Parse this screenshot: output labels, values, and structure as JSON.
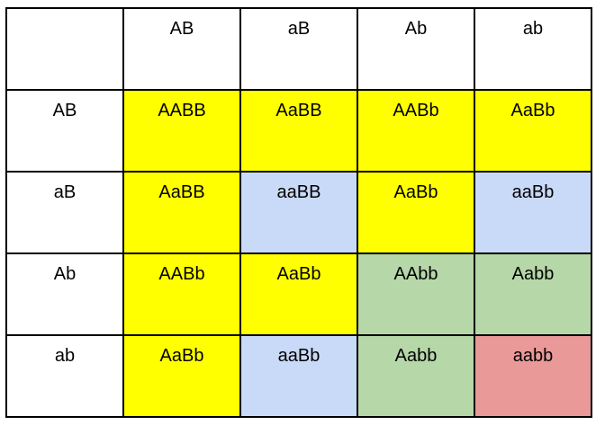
{
  "colors": {
    "dominant_both": "#ffff00",
    "recessive_a_dominant_b": "#c9daf8",
    "dominant_a_recessive_b": "#b6d7a8",
    "recessive_both": "#ea9999",
    "header": "#ffffff"
  },
  "punnett": {
    "column_headers": [
      "AB",
      "aB",
      "Ab",
      "ab"
    ],
    "rows": [
      {
        "header": "AB",
        "cells": [
          {
            "genotype": "AABB",
            "color": "#ffff00"
          },
          {
            "genotype": "AaBB",
            "color": "#ffff00"
          },
          {
            "genotype": "AABb",
            "color": "#ffff00"
          },
          {
            "genotype": "AaBb",
            "color": "#ffff00"
          }
        ]
      },
      {
        "header": "aB",
        "cells": [
          {
            "genotype": "AaBB",
            "color": "#ffff00"
          },
          {
            "genotype": "aaBB",
            "color": "#c9daf8"
          },
          {
            "genotype": "AaBb",
            "color": "#ffff00"
          },
          {
            "genotype": "aaBb",
            "color": "#c9daf8"
          }
        ]
      },
      {
        "header": "Ab",
        "cells": [
          {
            "genotype": "AABb",
            "color": "#ffff00"
          },
          {
            "genotype": "AaBb",
            "color": "#ffff00"
          },
          {
            "genotype": "AAbb",
            "color": "#b6d7a8"
          },
          {
            "genotype": "Aabb",
            "color": "#b6d7a8"
          }
        ]
      },
      {
        "header": "ab",
        "cells": [
          {
            "genotype": "AaBb",
            "color": "#ffff00"
          },
          {
            "genotype": "aaBb",
            "color": "#c9daf8"
          },
          {
            "genotype": "Aabb",
            "color": "#b6d7a8"
          },
          {
            "genotype": "aabb",
            "color": "#ea9999"
          }
        ]
      }
    ]
  }
}
